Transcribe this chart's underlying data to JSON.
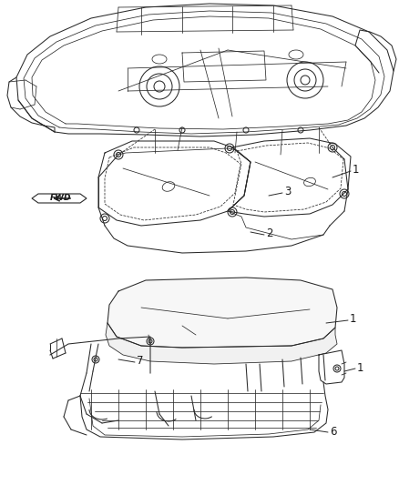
{
  "background_color": "#ffffff",
  "figsize": [
    4.38,
    5.33
  ],
  "dpi": 100,
  "line_color": "#2a2a2a",
  "text_color": "#1a1a1a",
  "label_fontsize": 8.5
}
